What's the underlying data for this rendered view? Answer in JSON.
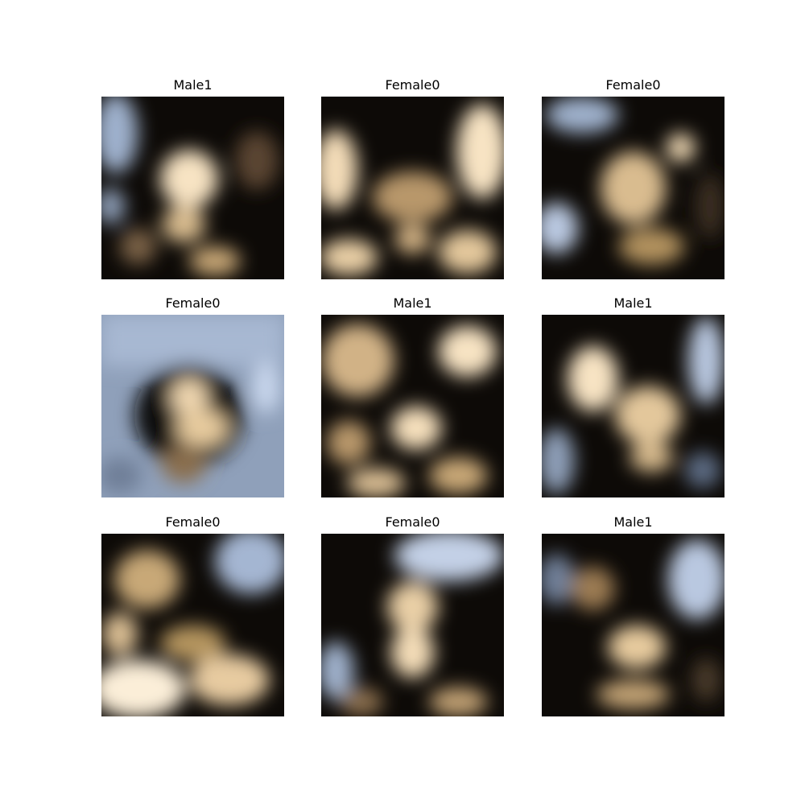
{
  "panels": [
    {
      "label": "Male1"
    },
    {
      "label": "Female0"
    },
    {
      "label": "Female0"
    },
    {
      "label": "Female0"
    },
    {
      "label": "Male1"
    },
    {
      "label": "Male1"
    },
    {
      "label": "Female0"
    },
    {
      "label": "Female0"
    },
    {
      "label": "Male1"
    }
  ],
  "palette": {
    "dark": "#0d0a07",
    "skin": "#f7e3c3",
    "mid": "#a8865d",
    "sky": "#c5d3e8"
  }
}
